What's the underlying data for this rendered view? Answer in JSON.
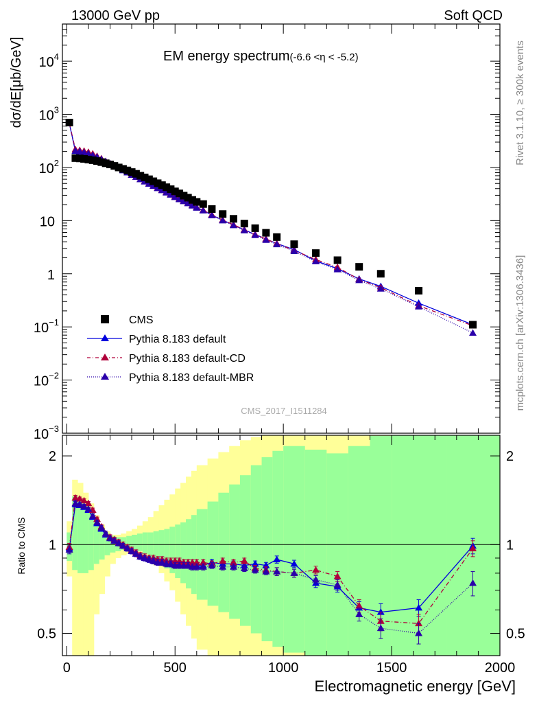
{
  "header": {
    "left": "13000 GeV pp",
    "right": "Soft QCD",
    "side_rivet": "Rivet 3.1.10, ≥ 300k events",
    "side_site": "mcplots.cern.ch [arXiv:1306.3436]",
    "analysis_id": "CMS_2017_I1511284"
  },
  "colors": {
    "cms": "#000000",
    "default": "#0000dd",
    "cd": "#b0003a",
    "mbr": "#2a00aa",
    "band_yellow": "#ffff99",
    "band_green": "#99ff99"
  },
  "chart_data": [
    {
      "type": "scatter",
      "name": "main-panel",
      "title": "EM energy spectrum",
      "title_suffix": "(-6.6 <η < -5.2)",
      "ylabel": "dσ/dE[μb/GeV]",
      "yscale": "log",
      "ylim": [
        0.001,
        50000
      ],
      "xlim": [
        -20,
        2000
      ],
      "ytick_labels": [
        {
          "value": 0.001,
          "base": "10",
          "exp": "−3"
        },
        {
          "value": 0.01,
          "base": "10",
          "exp": "−2"
        },
        {
          "value": 0.1,
          "base": "10",
          "exp": "−1"
        },
        {
          "value": 1,
          "base": "1",
          "exp": ""
        },
        {
          "value": 10,
          "base": "10",
          "exp": ""
        },
        {
          "value": 100,
          "base": "10",
          "exp": "2"
        },
        {
          "value": 1000,
          "base": "10",
          "exp": "3"
        },
        {
          "value": 10000,
          "base": "10",
          "exp": "4"
        }
      ],
      "legend": {
        "placement": "bottom-left",
        "entries": [
          "CMS",
          "Pythia 8.183 default",
          "Pythia 8.183 default-CD",
          "Pythia 8.183 default-MBR"
        ]
      },
      "x": [
        12,
        40,
        60,
        80,
        100,
        120,
        140,
        160,
        180,
        200,
        220,
        240,
        260,
        280,
        300,
        320,
        340,
        360,
        380,
        400,
        420,
        440,
        460,
        480,
        500,
        520,
        540,
        560,
        580,
        600,
        630,
        670,
        720,
        770,
        820,
        870,
        920,
        970,
        1050,
        1150,
        1250,
        1350,
        1450,
        1625,
        1875
      ],
      "series": [
        {
          "name": "CMS",
          "key": "cms",
          "values": [
            700,
            150,
            148,
            145,
            141,
            137,
            132,
            126,
            120,
            114,
            107,
            100,
            94,
            88,
            82,
            76,
            70,
            65,
            60,
            55,
            50.5,
            46.5,
            42.5,
            39,
            35.5,
            32.5,
            29.5,
            27,
            24.5,
            22.5,
            20.5,
            16.5,
            13.3,
            10.8,
            8.8,
            7.2,
            5.9,
            4.9,
            3.6,
            2.45,
            1.8,
            1.35,
            1.0,
            0.48,
            0.11
          ]
        },
        {
          "name": "Pythia 8.183 default",
          "key": "default",
          "values": [
            670,
            203,
            196,
            188,
            179,
            167,
            154,
            141,
            128,
            117,
            106,
            97,
            88,
            80,
            72,
            66,
            60,
            54,
            49,
            45,
            41,
            37.5,
            34,
            31,
            28,
            25.5,
            23.5,
            21.5,
            19.5,
            17.8,
            15.6,
            12.7,
            10.2,
            8.3,
            6.7,
            5.5,
            4.5,
            3.7,
            2.85,
            1.75,
            1.25,
            0.8,
            0.58,
            0.28,
            0.11
          ]
        },
        {
          "name": "Pythia 8.183 default-CD",
          "key": "cd",
          "values": [
            680,
            219,
            211,
            204,
            194,
            181,
            163,
            147,
            131,
            119,
            108,
            98,
            89,
            81,
            73,
            66,
            60,
            55,
            50,
            45.5,
            41.5,
            38,
            34.5,
            31.5,
            28.5,
            26,
            23.5,
            21.5,
            19.5,
            17.8,
            15.8,
            12.9,
            10.3,
            8.4,
            6.7,
            5.5,
            4.5,
            3.7,
            2.75,
            1.85,
            1.32,
            0.78,
            0.55,
            0.25,
            0.105
          ]
        },
        {
          "name": "Pythia 8.183 default-MBR",
          "key": "mbr",
          "values": [
            670,
            206,
            200,
            192,
            182,
            170,
            157,
            143,
            130,
            118,
            107,
            97,
            88,
            80,
            72,
            66,
            59.5,
            54,
            49,
            44.5,
            40.5,
            37,
            33.5,
            30.5,
            27.5,
            25,
            23,
            21,
            19,
            17.3,
            15.4,
            12.5,
            10,
            8.1,
            6.5,
            5.3,
            4.3,
            3.55,
            2.65,
            1.7,
            1.2,
            0.75,
            0.52,
            0.24,
            0.077
          ]
        }
      ]
    },
    {
      "type": "scatter",
      "name": "ratio-panel",
      "ylabel": "Ratio to CMS",
      "xlabel": "Electromagnetic energy [GeV]",
      "yscale": "log",
      "ylim": [
        0.42,
        2.35
      ],
      "xlim": [
        -20,
        2000
      ],
      "ytick_labels": [
        {
          "value": 0.5,
          "label": "0.5"
        },
        {
          "value": 1,
          "label": "1"
        },
        {
          "value": 2,
          "label": "2"
        }
      ],
      "xtick_labels": [
        {
          "value": 0,
          "label": "0"
        },
        {
          "value": 500,
          "label": "500"
        },
        {
          "value": 1000,
          "label": "1000"
        },
        {
          "value": 1500,
          "label": "1500"
        },
        {
          "value": 2000,
          "label": "2000"
        }
      ],
      "reference_line": 1,
      "x": [
        12,
        40,
        60,
        80,
        100,
        120,
        140,
        160,
        180,
        200,
        220,
        240,
        260,
        280,
        300,
        320,
        340,
        360,
        380,
        400,
        420,
        440,
        460,
        480,
        500,
        520,
        540,
        560,
        580,
        600,
        630,
        670,
        720,
        770,
        820,
        870,
        920,
        970,
        1050,
        1150,
        1250,
        1350,
        1450,
        1625,
        1875
      ],
      "series": [
        {
          "name": "Pythia 8.183 default",
          "key": "default",
          "values": [
            0.97,
            1.37,
            1.36,
            1.34,
            1.31,
            1.24,
            1.18,
            1.13,
            1.08,
            1.05,
            1.03,
            1.01,
            0.99,
            0.97,
            0.95,
            0.93,
            0.91,
            0.9,
            0.89,
            0.88,
            0.88,
            0.87,
            0.87,
            0.86,
            0.86,
            0.86,
            0.85,
            0.85,
            0.85,
            0.85,
            0.85,
            0.87,
            0.86,
            0.86,
            0.85,
            0.86,
            0.85,
            0.89,
            0.86,
            0.74,
            0.72,
            0.61,
            0.59,
            0.61,
            0.99
          ],
          "errors": [
            0.03,
            0.03,
            0.02,
            0.02,
            0.02,
            0.02,
            0.02,
            0.02,
            0.02,
            0.02,
            0.02,
            0.02,
            0.02,
            0.02,
            0.02,
            0.02,
            0.02,
            0.02,
            0.02,
            0.02,
            0.02,
            0.02,
            0.02,
            0.02,
            0.02,
            0.02,
            0.02,
            0.02,
            0.02,
            0.02,
            0.02,
            0.02,
            0.02,
            0.02,
            0.02,
            0.02,
            0.02,
            0.025,
            0.025,
            0.025,
            0.03,
            0.03,
            0.04,
            0.04,
            0.06
          ]
        },
        {
          "name": "Pythia 8.183 default-CD",
          "key": "cd",
          "values": [
            0.98,
            1.44,
            1.43,
            1.41,
            1.38,
            1.31,
            1.22,
            1.15,
            1.09,
            1.06,
            1.04,
            1.02,
            1.0,
            0.98,
            0.96,
            0.94,
            0.92,
            0.91,
            0.9,
            0.9,
            0.89,
            0.89,
            0.88,
            0.88,
            0.88,
            0.88,
            0.87,
            0.87,
            0.87,
            0.87,
            0.87,
            0.86,
            0.88,
            0.87,
            0.88,
            0.83,
            0.82,
            0.81,
            0.8,
            0.82,
            0.78,
            0.62,
            0.55,
            0.54,
            0.97
          ],
          "errors": [
            0.03,
            0.03,
            0.02,
            0.02,
            0.02,
            0.02,
            0.02,
            0.02,
            0.02,
            0.02,
            0.02,
            0.02,
            0.02,
            0.02,
            0.02,
            0.02,
            0.02,
            0.02,
            0.02,
            0.02,
            0.02,
            0.02,
            0.02,
            0.02,
            0.02,
            0.02,
            0.02,
            0.02,
            0.02,
            0.02,
            0.02,
            0.02,
            0.02,
            0.02,
            0.02,
            0.02,
            0.02,
            0.025,
            0.025,
            0.025,
            0.03,
            0.03,
            0.04,
            0.04,
            0.06
          ]
        },
        {
          "name": "Pythia 8.183 default-MBR",
          "key": "mbr",
          "values": [
            0.96,
            1.38,
            1.37,
            1.35,
            1.32,
            1.25,
            1.19,
            1.14,
            1.09,
            1.05,
            1.03,
            1.01,
            0.99,
            0.97,
            0.95,
            0.93,
            0.91,
            0.9,
            0.89,
            0.88,
            0.87,
            0.87,
            0.86,
            0.86,
            0.85,
            0.85,
            0.85,
            0.85,
            0.84,
            0.84,
            0.84,
            0.85,
            0.84,
            0.84,
            0.83,
            0.82,
            0.81,
            0.81,
            0.8,
            0.76,
            0.73,
            0.58,
            0.52,
            0.5,
            0.74
          ],
          "errors": [
            0.03,
            0.03,
            0.02,
            0.02,
            0.02,
            0.02,
            0.02,
            0.02,
            0.02,
            0.02,
            0.02,
            0.02,
            0.02,
            0.02,
            0.02,
            0.02,
            0.02,
            0.02,
            0.02,
            0.02,
            0.02,
            0.02,
            0.02,
            0.02,
            0.02,
            0.02,
            0.02,
            0.02,
            0.02,
            0.02,
            0.02,
            0.02,
            0.02,
            0.02,
            0.02,
            0.02,
            0.02,
            0.025,
            0.025,
            0.025,
            0.03,
            0.03,
            0.04,
            0.04,
            0.07
          ]
        }
      ],
      "bands": {
        "edges": [
          0,
          25,
          50,
          75,
          100,
          125,
          150,
          175,
          200,
          225,
          250,
          275,
          300,
          325,
          350,
          375,
          400,
          425,
          450,
          475,
          500,
          525,
          550,
          575,
          600,
          650,
          700,
          750,
          800,
          850,
          900,
          950,
          1000,
          1100,
          1200,
          1300,
          1400,
          1500,
          1750,
          2000
        ],
        "yellow_low": [
          0.78,
          0.42,
          0.42,
          0.42,
          0.42,
          0.58,
          0.68,
          0.78,
          0.86,
          0.9,
          0.92,
          0.93,
          0.93,
          0.92,
          0.9,
          0.88,
          0.85,
          0.8,
          0.75,
          0.7,
          0.64,
          0.58,
          0.53,
          0.48,
          0.44,
          0.42,
          0.42,
          0.42,
          0.42,
          0.42,
          0.42,
          0.42,
          0.42,
          0.42,
          0.42,
          0.42,
          0.42,
          0.42,
          0.42
        ],
        "yellow_high": [
          1.2,
          1.66,
          1.62,
          1.5,
          1.38,
          1.26,
          1.17,
          1.11,
          1.08,
          1.08,
          1.09,
          1.11,
          1.13,
          1.16,
          1.2,
          1.24,
          1.3,
          1.36,
          1.42,
          1.48,
          1.55,
          1.62,
          1.7,
          1.78,
          1.86,
          1.96,
          2.06,
          2.16,
          2.26,
          2.32,
          2.35,
          2.35,
          2.35,
          2.35,
          2.35,
          2.35,
          2.35,
          2.35,
          2.35
        ],
        "green_low": [
          0.88,
          0.82,
          0.8,
          0.8,
          0.82,
          0.86,
          0.89,
          0.92,
          0.94,
          0.95,
          0.96,
          0.96,
          0.96,
          0.95,
          0.93,
          0.91,
          0.89,
          0.86,
          0.83,
          0.8,
          0.77,
          0.74,
          0.71,
          0.68,
          0.65,
          0.62,
          0.59,
          0.56,
          0.53,
          0.5,
          0.47,
          0.45,
          0.43,
          0.42,
          0.42,
          0.42,
          0.42,
          0.42,
          0.42
        ],
        "green_high": [
          1.1,
          1.46,
          1.43,
          1.36,
          1.29,
          1.21,
          1.14,
          1.09,
          1.07,
          1.06,
          1.06,
          1.07,
          1.08,
          1.09,
          1.1,
          1.1,
          1.11,
          1.12,
          1.13,
          1.15,
          1.17,
          1.19,
          1.22,
          1.26,
          1.32,
          1.4,
          1.5,
          1.6,
          1.72,
          1.86,
          1.98,
          2.08,
          2.16,
          2.1,
          2.04,
          2.16,
          2.34,
          2.35,
          2.35
        ]
      }
    }
  ]
}
